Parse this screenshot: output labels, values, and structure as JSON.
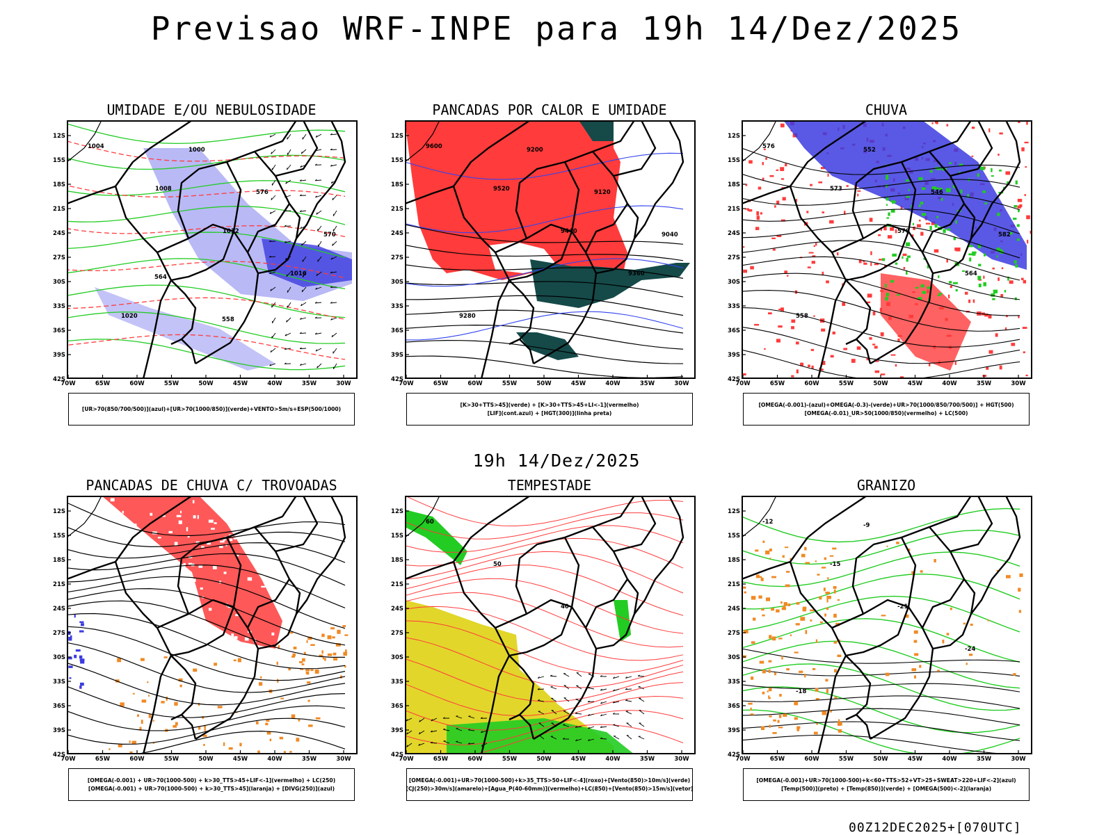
{
  "header": {
    "title": "Previsao WRF-INPE  para 19h 14/Dez/2025",
    "mid_title": "19h 14/Dez/2025",
    "footer_code": "00Z12DEC2025+[070UTC]"
  },
  "axes": {
    "lat_labels": [
      "12S",
      "15S",
      "18S",
      "21S",
      "24S",
      "27S",
      "30S",
      "33S",
      "36S",
      "39S",
      "42S"
    ],
    "lon_labels": [
      "70W",
      "65W",
      "60W",
      "55W",
      "50W",
      "45W",
      "40W",
      "35W",
      "30W"
    ]
  },
  "colors": {
    "humidity_blue": "#9b9bf2",
    "blue_strong": "#3c3ce0",
    "green": "#22cc22",
    "red": "#ff3b3b",
    "dark_teal": "#154a49",
    "yellow": "#e2d62a",
    "orange": "#f08a24",
    "black": "#000000"
  },
  "panels": [
    {
      "id": "umidade",
      "title": "UMIDADE E/OU NEBULOSIDADE",
      "legend": [
        "[UR>70(850/700/500)](azul)+[UR>70(1000/850)](verde)+VENTO>5m/s+ESP(500/1000)"
      ],
      "contour_labels": [
        "1004",
        "1008",
        "1012",
        "1016",
        "1020",
        "1000",
        "576",
        "570",
        "564",
        "558"
      ]
    },
    {
      "id": "pancadas-calor",
      "title": "PANCADAS POR CALOR E UMIDADE",
      "legend": [
        "[K>30+TTS>45](verde) + [K>30+TTS>45+LI<-1](vermelho)",
        "[LIF](cont.azul) + [HGT(300)](linha preta)"
      ],
      "contour_labels": [
        "9600",
        "9520",
        "9440",
        "9360",
        "9280",
        "9200",
        "9120",
        "9040"
      ]
    },
    {
      "id": "chuva",
      "title": "CHUVA",
      "legend": [
        "[OMEGA(-0.001)-(azul)+OMEGA(-0.3)-(verde)+UR>70(1000/850/700/500)] + HGT(500)",
        "[OMEGA(-0.01)_UR>50(1000/850)(vermelho) + LC(500)"
      ],
      "contour_labels": [
        "576",
        "573",
        "570",
        "564",
        "558",
        "552",
        "546",
        "582"
      ]
    },
    {
      "id": "trovoadas",
      "title": "PANCADAS DE CHUVA C/ TROVOADAS",
      "legend": [
        "[OMEGA(-0.001) + UR>70(1000-500) + k>30_TTS>45+LIF<-1](vermelho) + LC(250)",
        "[OMEGA(-0.001) + UR>70(1000-500) + k>30_TTS>45](laranja) + [DIVG(250)](azul)"
      ],
      "contour_labels": []
    },
    {
      "id": "tempestade",
      "title": "TEMPESTADE",
      "legend": [
        "[OMEGA(-0.001)+UR>70(1000-500)+k>35_TTS>50+LIF<-4](roxo)+[Vento(850)>10m/s](verde)",
        "[CJ(250)>30m/s](amarelo)+[Agua_P(40-60mm)](vermelho)+LC(850)+[Vento(850)>15m/s](vetor)"
      ],
      "contour_labels": [
        "60",
        "50",
        "40"
      ]
    },
    {
      "id": "granizo",
      "title": "GRANIZO",
      "legend": [
        "[OMEGA(-0.001)+UR>70(1000-500)+k<60+TTS>52+VT>25+SWEAT>220+LIF<-2](azul)",
        "[Temp(500)](preto) + [Temp(850)](verde) + [OMEGA(500)<-2](laranja)"
      ],
      "contour_labels": [
        "-12",
        "-15",
        "-21",
        "-24",
        "-18",
        "-9"
      ]
    }
  ]
}
